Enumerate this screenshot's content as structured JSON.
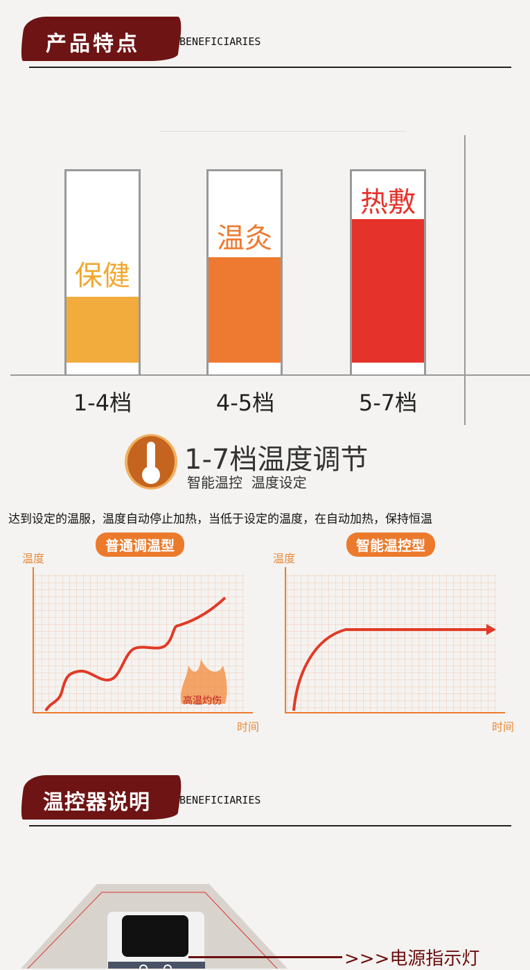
{
  "section1": {
    "title": "产品特点",
    "subtitle": "BENEFICIARIES"
  },
  "levels": [
    {
      "label": "保健",
      "range": "1-4档",
      "fill_percent": 34,
      "color": "#f2ac3d"
    },
    {
      "label": "温灸",
      "range": "4-5档",
      "fill_percent": 54,
      "color": "#ee7a32"
    },
    {
      "label": "热敷",
      "range": "5-7档",
      "fill_percent": 74,
      "color": "#e5322b"
    }
  ],
  "feature": {
    "icon": "thermometer-icon",
    "title": "1-7档温度调节",
    "subtitle": "智能温控  温度设定",
    "description": "达到设定的温服，温度自动停止加热，当低于设定的温度，在自动加热，保持恒温"
  },
  "charts": [
    {
      "title": "普通调温型",
      "ylabel": "温度",
      "xlabel": "时间",
      "annotation": "高温灼伤"
    },
    {
      "title": "智能温控型",
      "ylabel": "温度",
      "xlabel": "时间"
    }
  ],
  "section2": {
    "title": "温控器说明",
    "subtitle": "BENEFICIARIES"
  },
  "device": {
    "callout": ">>>电源指示灯"
  }
}
